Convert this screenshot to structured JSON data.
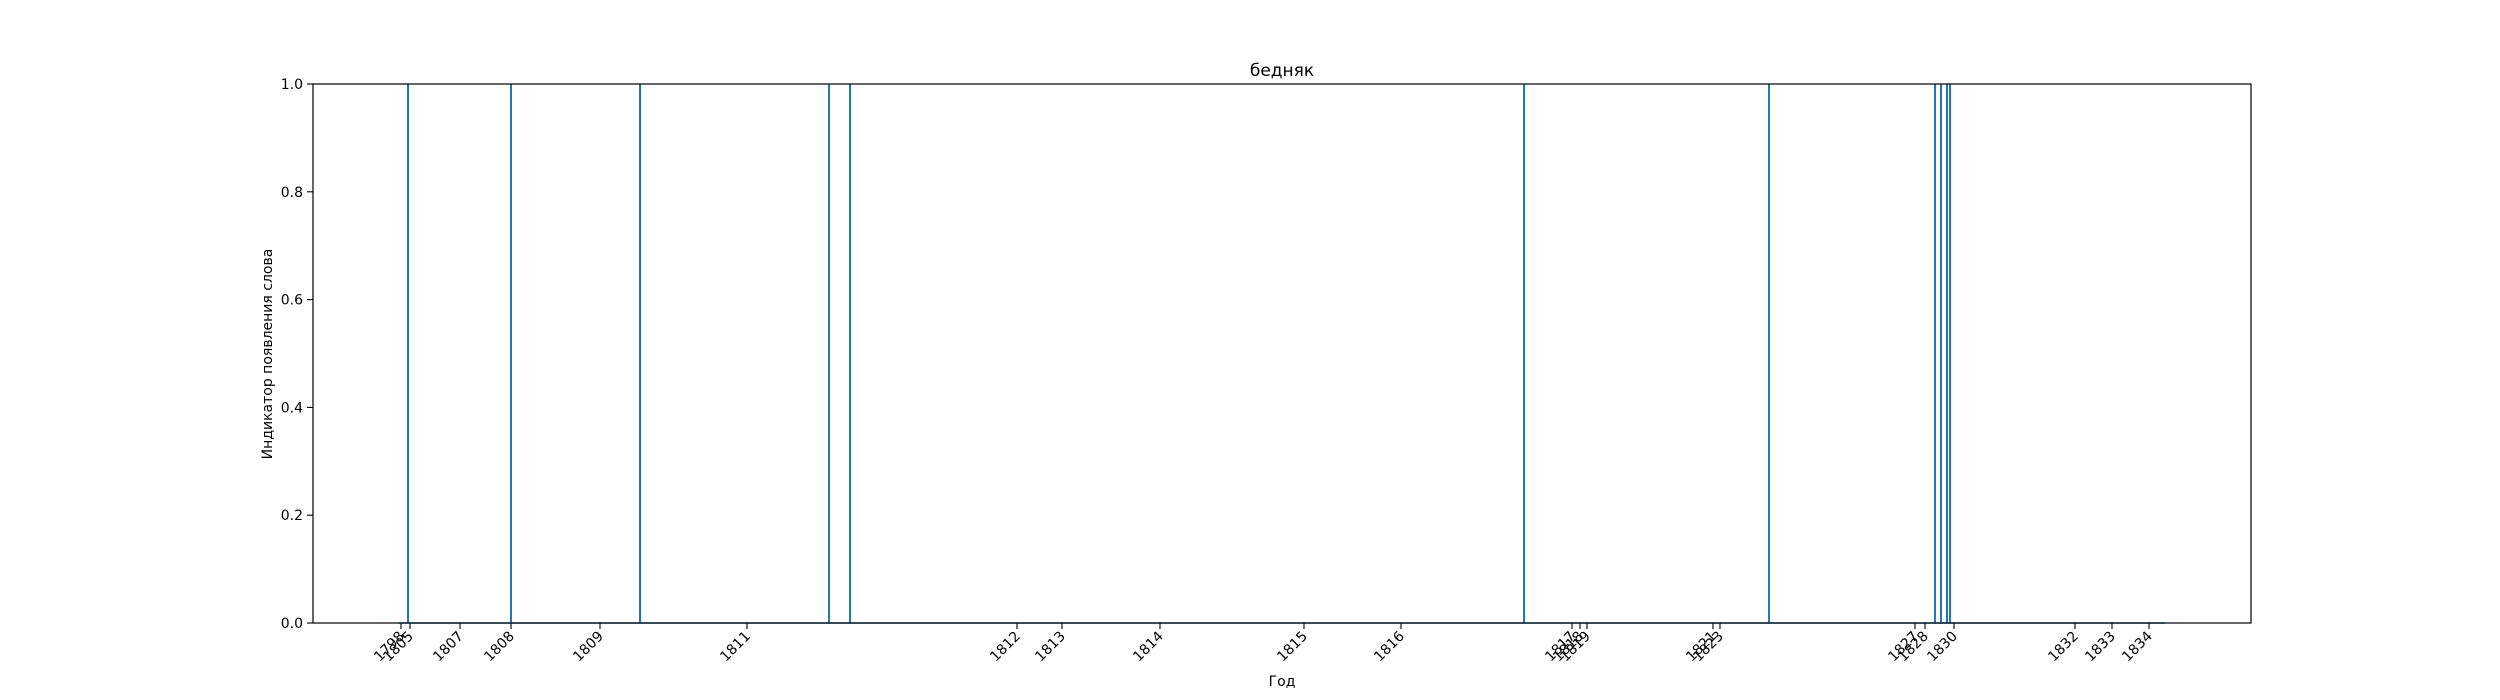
{
  "chart_data": {
    "type": "line",
    "title": "бедняк",
    "xlabel": "Год",
    "ylabel": "Индикатор появления слова",
    "ylim": [
      0,
      1
    ],
    "y_ticks": [
      "0.0",
      "0.2",
      "0.4",
      "0.6",
      "0.8",
      "1.0"
    ],
    "x_tick_labels": [
      "1798",
      "1805",
      "1807",
      "1808",
      "1809",
      "1811",
      "1812",
      "1813",
      "1814",
      "1815",
      "1816",
      "1817",
      "1818",
      "1819",
      "1821",
      "1823",
      "1827",
      "1828",
      "1830",
      "1832",
      "1833",
      "1834"
    ],
    "series_color": "#1f77b4",
    "occurrence_years": [
      "1805",
      "1808",
      "1809",
      "1811",
      "1812",
      "1817",
      "1823",
      "1828",
      "1830"
    ],
    "note": ""
  }
}
